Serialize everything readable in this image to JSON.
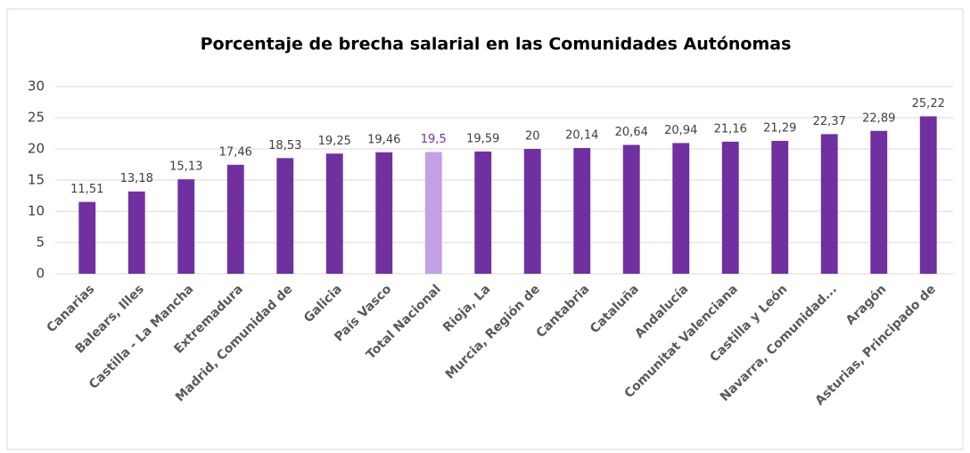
{
  "chart_data": {
    "type": "bar",
    "title": "Porcentaje de brecha salarial en las Comunidades Autónomas",
    "categories": [
      "Canarias",
      "Balears, Illes",
      "Castilla - La Mancha",
      "Extremadura",
      "Madrid, Comunidad de",
      "Galicia",
      "País Vasco",
      "Total Nacional",
      "Rioja, La",
      "Murcia, Región de",
      "Cantabria",
      "Cataluña",
      "Andalucía",
      "Comunitat Valenciana",
      "Castilla y León",
      "Navarra, Comunidad...",
      "Aragón",
      "Asturias, Principado de"
    ],
    "values": [
      11.51,
      13.18,
      15.13,
      17.46,
      18.53,
      19.25,
      19.46,
      19.5,
      19.59,
      20,
      20.14,
      20.64,
      20.94,
      21.16,
      21.29,
      22.37,
      22.89,
      25.22
    ],
    "value_labels": [
      "11,51",
      "13,18",
      "15,13",
      "17,46",
      "18,53",
      "19,25",
      "19,46",
      "19,5",
      "19,59",
      "20",
      "20,14",
      "20,64",
      "20,94",
      "21,16",
      "21,29",
      "22,37",
      "22,89",
      "25,22"
    ],
    "color": "#7030a0",
    "colors": [
      "#7030a0",
      "#7030a0",
      "#7030a0",
      "#7030a0",
      "#7030a0",
      "#7030a0",
      "#7030a0",
      "#c5a0e6",
      "#7030a0",
      "#7030a0",
      "#7030a0",
      "#7030a0",
      "#7030a0",
      "#7030a0",
      "#7030a0",
      "#7030a0",
      "#7030a0",
      "#7030a0"
    ],
    "ylim": [
      0,
      30
    ],
    "yticks": [
      0,
      5,
      10,
      15,
      20,
      25,
      30
    ],
    "grid": true
  }
}
